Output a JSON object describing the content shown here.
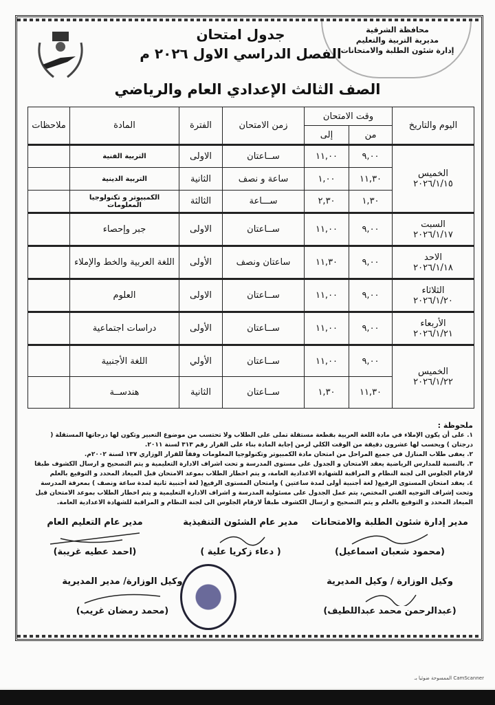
{
  "header": {
    "authority_lines": [
      "محافظة الشرقية",
      "مديرية التربية والتعليم",
      "إدارة شئون الطلبة والامتحانات"
    ],
    "title": "جدول امتحان",
    "term": "الفصل الدراسي الاول ٢٠٢٦ م",
    "grade": "الصف الثالث الإعدادي العام والرياضي"
  },
  "table": {
    "headers": {
      "day_date": "اليوم والتاريخ",
      "exam_time": "وقت الامتحان",
      "from": "من",
      "to": "إلى",
      "duration": "زمن الامتحان",
      "period": "الفترة",
      "subject": "المادة",
      "notes": "ملاحظات"
    },
    "days": [
      {
        "day": "الخميس",
        "date": "٢٠٢٦/١/١٥",
        "sessions": [
          {
            "from": "٩,٠٠",
            "to": "١١,٠٠",
            "duration": "ســاعتان",
            "period": "الاولى",
            "subject": "التربية الفنية",
            "small": true
          },
          {
            "from": "١١,٣٠",
            "to": "١,٠٠",
            "duration": "ساعة و نصف",
            "period": "الثانية",
            "subject": "التربية الدينية",
            "small": true
          },
          {
            "from": "١,٣٠",
            "to": "٢,٣٠",
            "duration": "ســـاعة",
            "period": "الثالثة",
            "subject": "الكمبيوتر و تكنولوجيا المعلومات",
            "small": true
          }
        ]
      },
      {
        "day": "السبت",
        "date": "٢٠٢٦/١/١٧",
        "sessions": [
          {
            "from": "٩,٠٠",
            "to": "١١,٠٠",
            "duration": "ســاعتان",
            "period": "الاولى",
            "subject": "جبر وإحصاء"
          }
        ]
      },
      {
        "day": "الاحد",
        "date": "٢٠٢٦/١/١٨",
        "sessions": [
          {
            "from": "٩,٠٠",
            "to": "١١,٣٠",
            "duration": "ساعتان ونصف",
            "period": "الأولى",
            "subject": "اللغة العربية والخط والإملاء"
          }
        ]
      },
      {
        "day": "الثلاثاء",
        "date": "٢٠٢٦/١/٢٠",
        "sessions": [
          {
            "from": "٩,٠٠",
            "to": "١١,٠٠",
            "duration": "ســاعتان",
            "period": "الاولى",
            "subject": "العلوم"
          }
        ]
      },
      {
        "day": "الأربعاء",
        "date": "٢٠٢٦/١/٢١",
        "sessions": [
          {
            "from": "٩,٠٠",
            "to": "١١,٠٠",
            "duration": "ســاعتان",
            "period": "الأولى",
            "subject": "دراسات اجتماعية"
          }
        ]
      },
      {
        "day": "الخميس",
        "date": "٢٠٢٦/١/٢٢",
        "sessions": [
          {
            "from": "٩,٠٠",
            "to": "١١,٠٠",
            "duration": "ســاعتان",
            "period": "الأولي",
            "subject": "اللغة الأجنبية"
          },
          {
            "from": "١١,٣٠",
            "to": "١,٣٠",
            "duration": "ســاعتان",
            "period": "الثانية",
            "subject": "هندســة"
          }
        ]
      }
    ]
  },
  "notes": {
    "heading": "ملحوظة :",
    "items": [
      "١. على أن يكون الإملاء في مادة اللغة العربية بقطعة مستقلة تملى على الطلاب ولا تحتسب من موضوع التعبير وتكون لها درجاتها المستقلة ( درجتان ) ويحسب لها عشرون دقيقة من الوقت الكلي لزمن إجابة المادة بناء على القرار رقم ٣١٣ لسنة ٢٠١١.",
      "٢. يعفى طلاب المنازل في جميع المراحل من امتحان مادة الكمبيوتر وتكنولوجيا المعلومات وفقاً للقرار الوزاري ١٣٧ لسنة ٢٠٠٢م.",
      "٣. بالنسبة للمدارس الرياضية يعقد الامتحان و الجدول على مستوى المدرسة و تحت اشراف الادارة التعليمية و يتم التصحيح و ارسال الكشوف طبقا لارقام الجلوس الى لجنة النظام و المراقبة للشهادة الاعدادية العامة، و يتم اخطار الطلاب بموعد الامتحان قبل الميعاد المحدد و التوقيع بالعلم",
      "٤. يعقد امتحان المستوى الرفيع( لغة أجنبية أولى لمدة ساعتين ) وامتحان المستوى الرفيع( لغة أجنبية ثانية لمدة ساعة ونصف ) بمعرفة المدرسة وتحت إشراف التوجيه الفني المختص، يتم عمل الجدول على مسئولية المدرسة و اشراف الادارة التعليمية و يتم اخطار الطلاب بموعد الامتحان قبل الميعاد المحدد و التوقيع بالعلم و يتم التصحيح و ارسال الكشوف طبقاً لارقام الجلوس الى لجنة النظام و المراقبة للشهادة الاعدادية العامة."
    ]
  },
  "signatures": [
    {
      "title": "مدير إدارة شئون الطلبة والامتحانات",
      "name": "(محمود شعبان اسماعيل)"
    },
    {
      "title": "مدير عام الشئون التنفيذية",
      "name": "( دعاء زكريا علية )"
    },
    {
      "title": "مدير عام التعليم العام",
      "name": "(احمد عطيه غريبة)"
    },
    {
      "title": "وكيل الوزارة / وكيل المديرية",
      "name": "(عبدالرحمن محمد عبداللطيف)"
    },
    {
      "title": "وكيل الوزارة/ مدير المديرية",
      "name": "(محمد رمضان غريب)"
    }
  ],
  "footer": "الممسوحة ضوئيا بـ CamScanner"
}
